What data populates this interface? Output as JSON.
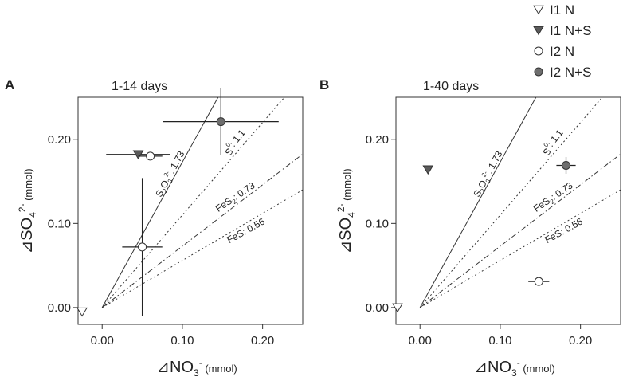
{
  "legend": {
    "position": "top-right",
    "entries": [
      {
        "label": "I1 N",
        "marker": "triangle-down",
        "fill": "#ffffff"
      },
      {
        "label": "I1 N+S",
        "marker": "triangle-down",
        "fill": "#5a5a5a"
      },
      {
        "label": "I2 N",
        "marker": "circle",
        "fill": "#ffffff"
      },
      {
        "label": "I2 N+S",
        "marker": "circle",
        "fill": "#6e6e6e"
      }
    ]
  },
  "chart_data": [
    {
      "type": "scatter",
      "panel_label": "A",
      "title": "1-14 days",
      "xlabel_symbol": "⊿NO",
      "xlabel_sub": "3",
      "xlabel_sup": "-",
      "xlabel_unit": "(mmol)",
      "ylabel_symbol": "⊿SO",
      "ylabel_sub": "4",
      "ylabel_sup": "2-",
      "ylabel_unit": "(mmol)",
      "xlim": [
        -0.03,
        0.25
      ],
      "ylim": [
        -0.02,
        0.25
      ],
      "x_ticks": [
        0.0,
        0.1,
        0.2
      ],
      "x_tick_labels": [
        "0.00",
        "0.10",
        "0.20"
      ],
      "y_ticks": [
        0.0,
        0.1,
        0.2
      ],
      "y_tick_labels": [
        "0.00",
        "0.10",
        "0.20"
      ],
      "reference_lines": [
        {
          "name": "S2O3",
          "label_main": "S",
          "label_sub1": "2",
          "label_mid": "O",
          "label_sub2": "3",
          "label_sup": "2-",
          "label_value": ": 1.73",
          "slope": 1.73,
          "style": "solid"
        },
        {
          "name": "S0",
          "label_main": "S",
          "label_sup": "0",
          "label_value": ": 1.1",
          "slope": 1.1,
          "style": "dotted"
        },
        {
          "name": "FeS2",
          "label_main": "FeS",
          "label_sub1": "2",
          "label_value": ": 0.73",
          "slope": 0.73,
          "style": "dashdot"
        },
        {
          "name": "FeS",
          "label_main": "FeS",
          "label_value": ": 0.56",
          "slope": 0.56,
          "style": "dotted"
        }
      ],
      "points": [
        {
          "series": "I1 N",
          "x": -0.025,
          "y": -0.005,
          "xerr": 0,
          "yerr": 0
        },
        {
          "series": "I1 N+S",
          "x": 0.045,
          "y": 0.182,
          "xerr": 0.04,
          "yerr": 0
        },
        {
          "series": "I2 N",
          "x": 0.06,
          "y": 0.18,
          "xerr": 0.015,
          "yerr": 0
        },
        {
          "series": "I2 N",
          "x": 0.05,
          "y": 0.072,
          "xerr": 0.025,
          "yerr": 0.082
        },
        {
          "series": "I2 N+S",
          "x": 0.148,
          "y": 0.221,
          "xerr": 0.072,
          "yerr": 0.04
        }
      ]
    },
    {
      "type": "scatter",
      "panel_label": "B",
      "title": "1-40 days",
      "xlabel_symbol": "⊿NO",
      "xlabel_sub": "3",
      "xlabel_sup": "-",
      "xlabel_unit": "(mmol)",
      "ylabel_symbol": "⊿SO",
      "ylabel_sub": "4",
      "ylabel_sup": "2-",
      "ylabel_unit": "(mmol)",
      "xlim": [
        -0.03,
        0.25
      ],
      "ylim": [
        -0.02,
        0.25
      ],
      "x_ticks": [
        0.0,
        0.1,
        0.2
      ],
      "x_tick_labels": [
        "0.00",
        "0.10",
        "0.20"
      ],
      "y_ticks": [
        0.0,
        0.1,
        0.2
      ],
      "y_tick_labels": [
        "0.00",
        "0.10",
        "0.20"
      ],
      "reference_lines": [
        {
          "name": "S2O3",
          "label_main": "S",
          "label_sub1": "2",
          "label_mid": "O",
          "label_sub2": "3",
          "label_sup": "2-",
          "label_value": ": 1.73",
          "slope": 1.73,
          "style": "solid"
        },
        {
          "name": "S0",
          "label_main": "S",
          "label_sup": "0",
          "label_value": ": 1.1",
          "slope": 1.1,
          "style": "dotted"
        },
        {
          "name": "FeS2",
          "label_main": "FeS",
          "label_sub1": "2",
          "label_value": ": 0.73",
          "slope": 0.73,
          "style": "dashdot"
        },
        {
          "name": "FeS",
          "label_main": "FeS",
          "label_value": ": 0.56",
          "slope": 0.56,
          "style": "dotted"
        }
      ],
      "points": [
        {
          "series": "I1 N",
          "x": -0.028,
          "y": 0.0,
          "xerr": 0,
          "yerr": 0
        },
        {
          "series": "I1 N+S",
          "x": 0.01,
          "y": 0.164,
          "xerr": 0,
          "yerr": 0
        },
        {
          "series": "I2 N",
          "x": 0.148,
          "y": 0.031,
          "xerr": 0.013,
          "yerr": 0
        },
        {
          "series": "I2 N+S",
          "x": 0.182,
          "y": 0.169,
          "xerr": 0.012,
          "yerr": 0.01
        }
      ]
    }
  ]
}
